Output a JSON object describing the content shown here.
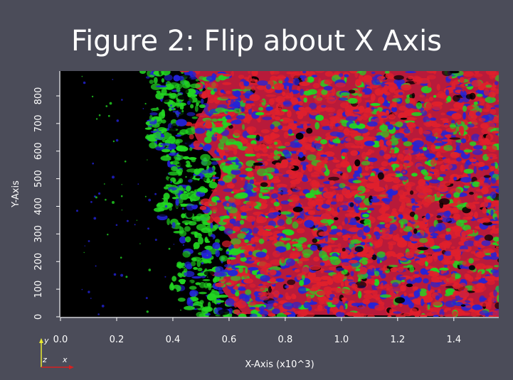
{
  "chart_data": {
    "type": "heatmap",
    "title": "Figure 2: Flip about X Axis",
    "xlabel": "X-Axis (x10^3)",
    "ylabel": "Y-Axis",
    "xlim": [
      0.0,
      1.56
    ],
    "ylim": [
      0,
      890
    ],
    "xticks": [
      "0.0",
      "0.2",
      "0.4",
      "0.6",
      "0.8",
      "1.0",
      "1.2",
      "1.4"
    ],
    "yticks": [
      "0",
      "100",
      "200",
      "300",
      "400",
      "500",
      "600",
      "700",
      "800"
    ],
    "xtick_values": [
      0.0,
      0.2,
      0.4,
      0.6,
      0.8,
      1.0,
      1.2,
      1.4
    ],
    "ytick_values": [
      0,
      100,
      200,
      300,
      400,
      500,
      600,
      700,
      800
    ],
    "colors": {
      "red": "#e0202c",
      "green": "#22d622",
      "blue": "#2323d8",
      "black": "#000000"
    },
    "orientation_triad": {
      "y_label": "y",
      "z_label": "z",
      "x_label": "x",
      "y_color": "#e8e830",
      "x_color": "#d82020"
    }
  }
}
